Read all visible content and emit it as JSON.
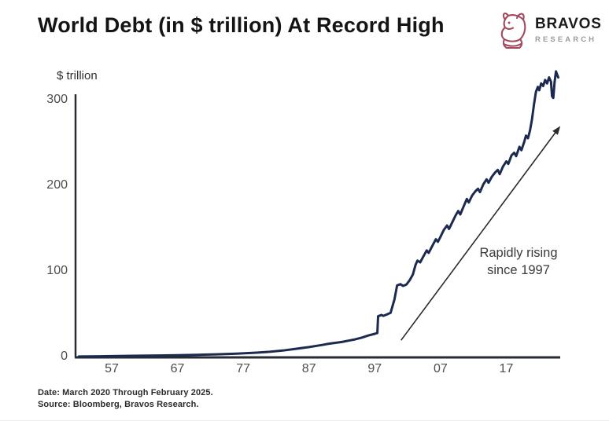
{
  "header": {
    "title": "World Debt (in $ trillion) At Record High"
  },
  "logo": {
    "name": "BRAVOS",
    "subtitle": "RESEARCH",
    "icon": "bull-icon",
    "icon_color": "#a34a5e",
    "name_color": "#1b1b1b",
    "subtitle_color": "#9b9b9b"
  },
  "footer": {
    "line1": "Date: March 2020 Through February 2025.",
    "line2": "Source: Bloomberg, Bravos Research."
  },
  "chart_data": {
    "type": "line",
    "title": "World Debt (in $ trillion) At Record High",
    "ylabel": "$ trillion",
    "xlabel": "",
    "grid": false,
    "legend": "none",
    "xlim": [
      1951.5,
      2025.2
    ],
    "ylim": [
      0,
      300
    ],
    "xtick_labels": [
      "57",
      "67",
      "77",
      "87",
      "97",
      "07",
      "17"
    ],
    "xtick_years": [
      1957,
      1967,
      1977,
      1987,
      1997,
      2007,
      2017
    ],
    "ytick_labels": [
      "300",
      "200",
      "100",
      "0"
    ],
    "ytick_values": [
      300,
      200,
      100,
      0
    ],
    "line_color": "#1b2a4e",
    "axis_color": "#262b36",
    "series": [
      {
        "name": "World debt ($ trillion)",
        "points": [
          [
            1952,
            1
          ],
          [
            1956,
            1.4
          ],
          [
            1960,
            1.8
          ],
          [
            1964,
            2.2
          ],
          [
            1967,
            2.6
          ],
          [
            1970,
            3
          ],
          [
            1973,
            3.6
          ],
          [
            1976,
            4.4
          ],
          [
            1979,
            5.5
          ],
          [
            1981,
            6.5
          ],
          [
            1983,
            8
          ],
          [
            1985,
            10
          ],
          [
            1987,
            12
          ],
          [
            1989,
            14.5
          ],
          [
            1990,
            16
          ],
          [
            1991,
            17
          ],
          [
            1992,
            18
          ],
          [
            1993,
            19.5
          ],
          [
            1994,
            21
          ],
          [
            1995,
            23
          ],
          [
            1996,
            25.5
          ],
          [
            1997,
            27.5
          ],
          [
            1997.4,
            28.5
          ],
          [
            1997.5,
            48
          ],
          [
            1998,
            49.5
          ],
          [
            1998.3,
            48.5
          ],
          [
            1998.8,
            50
          ],
          [
            1999.4,
            52
          ],
          [
            2000,
            68
          ],
          [
            2000.4,
            84
          ],
          [
            2000.9,
            85.5
          ],
          [
            2001.3,
            83.5
          ],
          [
            2001.8,
            85
          ],
          [
            2002.3,
            90
          ],
          [
            2002.8,
            97
          ],
          [
            2003.2,
            108
          ],
          [
            2003.5,
            113
          ],
          [
            2003.9,
            111
          ],
          [
            2004.4,
            118
          ],
          [
            2004.9,
            125
          ],
          [
            2005.2,
            122
          ],
          [
            2005.8,
            131
          ],
          [
            2006.3,
            138
          ],
          [
            2006.6,
            135
          ],
          [
            2007,
            141
          ],
          [
            2007.5,
            149
          ],
          [
            2008,
            154
          ],
          [
            2008.3,
            150
          ],
          [
            2008.8,
            158
          ],
          [
            2009.3,
            166
          ],
          [
            2009.7,
            171
          ],
          [
            2010,
            167
          ],
          [
            2010.5,
            176
          ],
          [
            2011,
            185
          ],
          [
            2011.3,
            181
          ],
          [
            2011.8,
            189
          ],
          [
            2012.3,
            194
          ],
          [
            2012.7,
            197
          ],
          [
            2013,
            193
          ],
          [
            2013.5,
            202
          ],
          [
            2014,
            208
          ],
          [
            2014.3,
            204
          ],
          [
            2014.8,
            211
          ],
          [
            2015.3,
            216
          ],
          [
            2015.7,
            219
          ],
          [
            2016,
            214
          ],
          [
            2016.5,
            223
          ],
          [
            2017,
            229
          ],
          [
            2017.3,
            226
          ],
          [
            2017.8,
            236
          ],
          [
            2018.2,
            239
          ],
          [
            2018.5,
            235
          ],
          [
            2019,
            246
          ],
          [
            2019.3,
            242
          ],
          [
            2019.7,
            251
          ],
          [
            2020,
            259
          ],
          [
            2020.3,
            256
          ],
          [
            2020.6,
            265
          ],
          [
            2020.9,
            278
          ],
          [
            2021.2,
            295
          ],
          [
            2021.5,
            310
          ],
          [
            2021.8,
            316
          ],
          [
            2022,
            312
          ],
          [
            2022.3,
            320
          ],
          [
            2022.6,
            317
          ],
          [
            2022.9,
            324
          ],
          [
            2023.2,
            320
          ],
          [
            2023.5,
            327
          ],
          [
            2023.8,
            322
          ],
          [
            2023.95,
            305
          ],
          [
            2024.15,
            303
          ],
          [
            2024.35,
            322
          ],
          [
            2024.55,
            334
          ],
          [
            2024.75,
            330
          ],
          [
            2024.9,
            327
          ]
        ]
      }
    ],
    "annotation": {
      "line1": "Rapidly rising",
      "line2": "since 1997",
      "arrow_color": "#2a2a2a",
      "arrow_from": [
        2001.0,
        20
      ],
      "arrow_to": [
        2025.0,
        268
      ]
    }
  }
}
